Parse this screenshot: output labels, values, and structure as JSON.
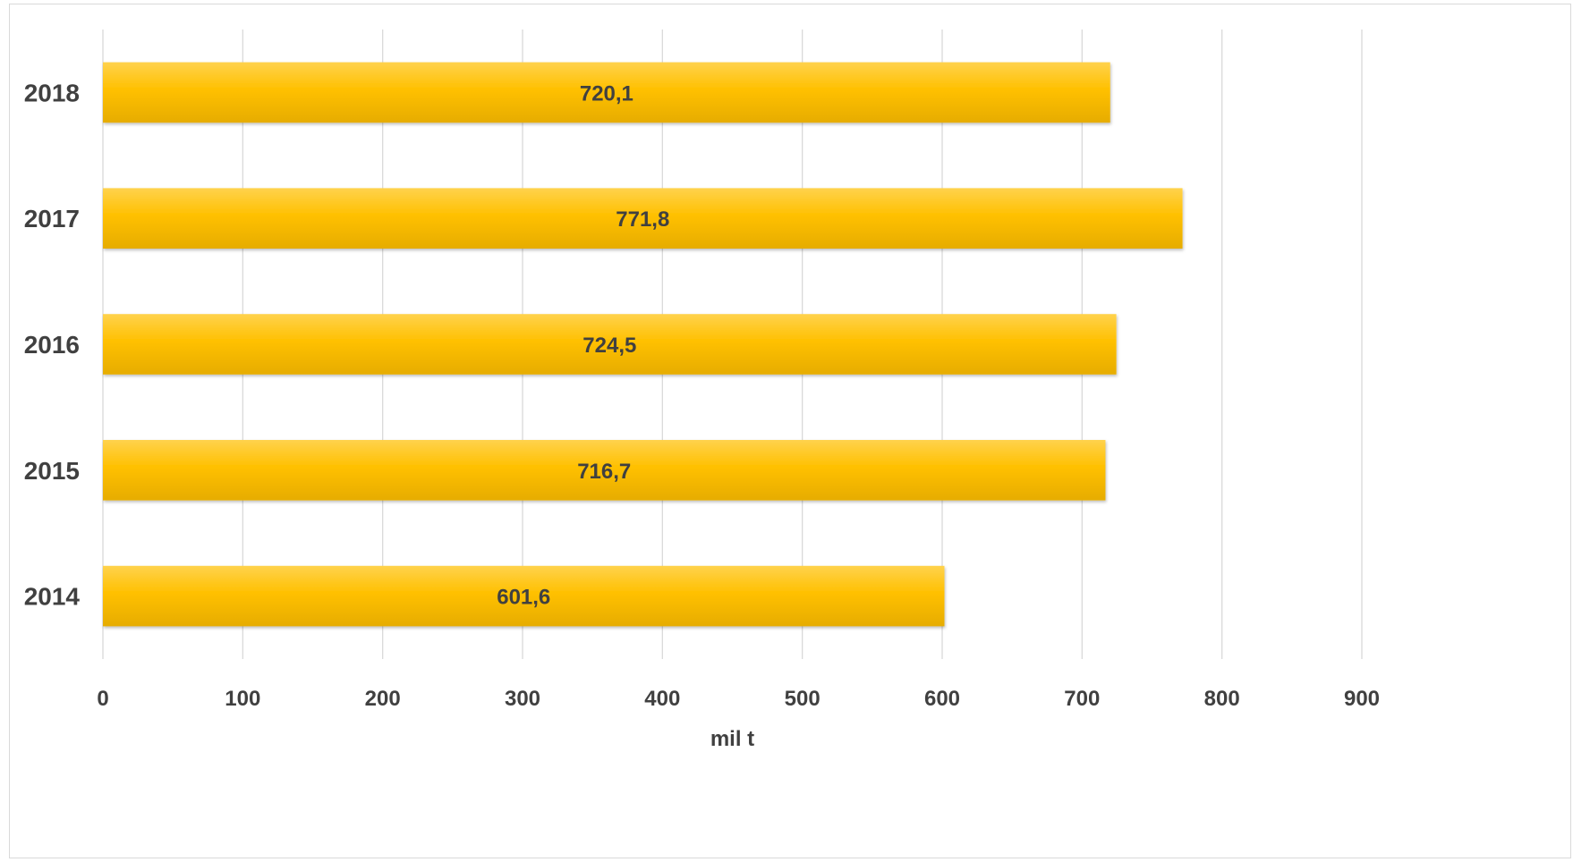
{
  "chart_data": {
    "type": "bar",
    "orientation": "horizontal",
    "categories": [
      "2014",
      "2015",
      "2016",
      "2017",
      "2018"
    ],
    "values": [
      601.6,
      716.7,
      724.5,
      771.8,
      720.1
    ],
    "data_labels": [
      "601,6",
      "716,7",
      "724,5",
      "771,8",
      "720,1"
    ],
    "title": "",
    "xlabel": "mil t",
    "ylabel": "",
    "xlim": [
      0,
      900
    ],
    "x_ticks": [
      0,
      100,
      200,
      300,
      400,
      500,
      600,
      700,
      800,
      900
    ],
    "x_tick_labels": [
      "0",
      "100",
      "200",
      "300",
      "400",
      "500",
      "600",
      "700",
      "800",
      "900"
    ],
    "grid": "vertical",
    "legend": "none",
    "colors": {
      "bar_top": "#ffd24d",
      "bar_mid": "#ffc000",
      "bar_bottom": "#e6ac00",
      "grid": "#d9d9d9",
      "text": "#404040"
    }
  }
}
